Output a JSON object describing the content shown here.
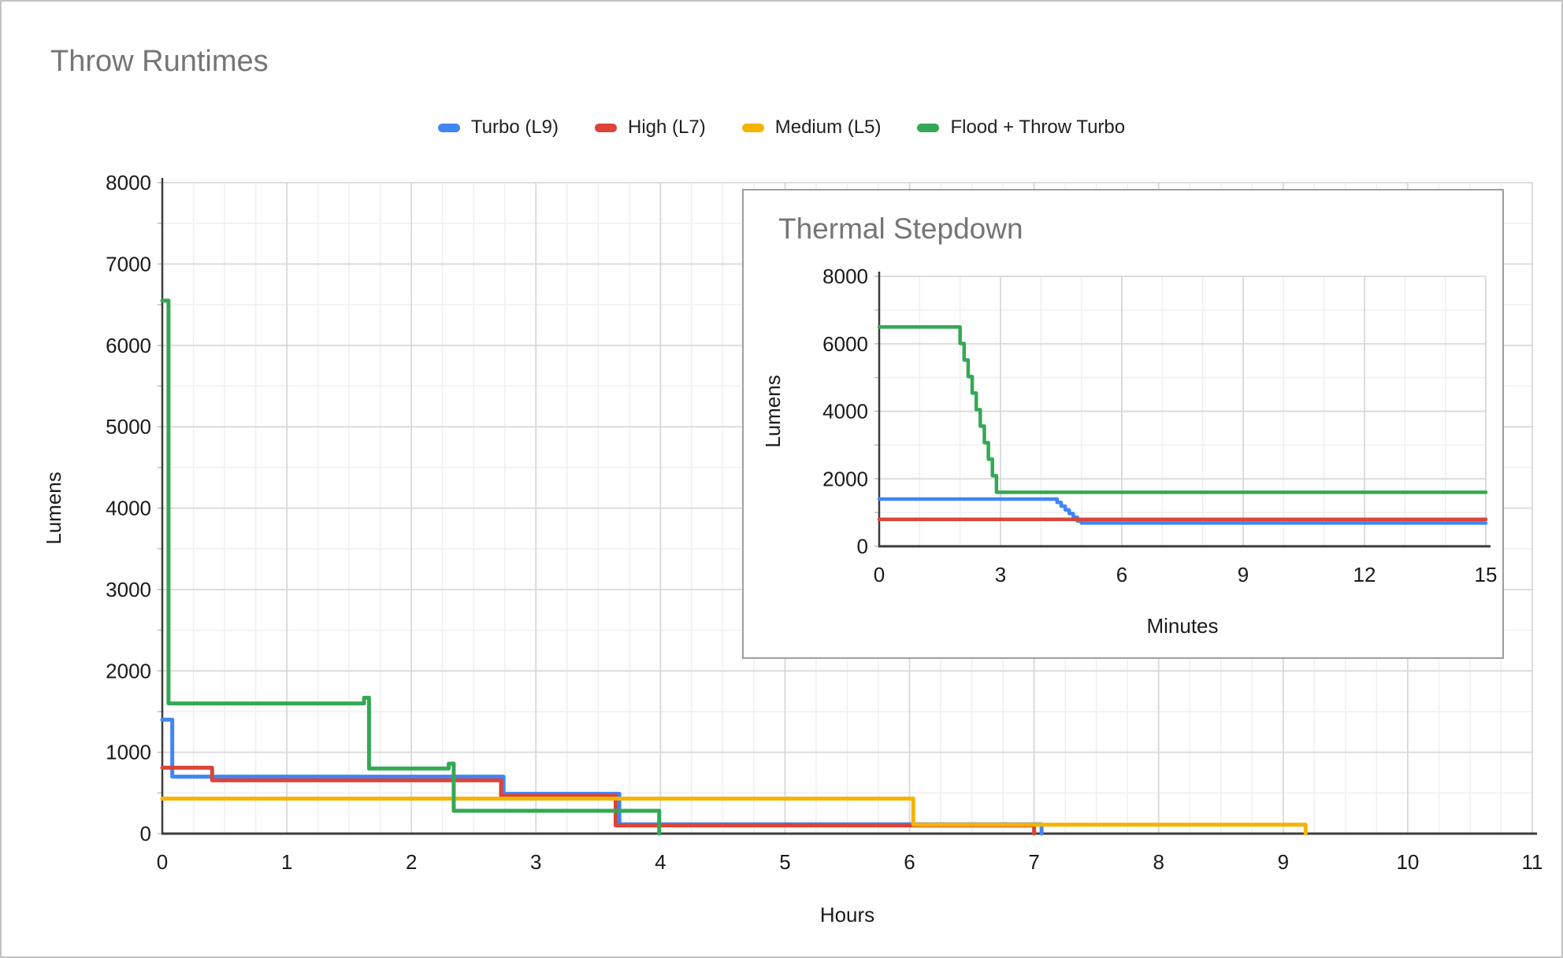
{
  "title": "Throw Runtimes",
  "legend": {
    "items": [
      {
        "label": "Turbo (L9)",
        "color": "#4285F4"
      },
      {
        "label": "High (L7)",
        "color": "#DB4437"
      },
      {
        "label": "Medium (L5)",
        "color": "#F5B400"
      },
      {
        "label": "Flood + Throw Turbo",
        "color": "#34A853"
      }
    ]
  },
  "chart_data": [
    {
      "type": "line",
      "interpolation": "step-after",
      "title": "Throw Runtimes",
      "xlabel": "Hours",
      "ylabel": "Lumens",
      "xlim": [
        0,
        11
      ],
      "ylim": [
        0,
        8000
      ],
      "x_ticks": [
        0,
        1,
        2,
        3,
        4,
        5,
        6,
        7,
        8,
        9,
        10,
        11
      ],
      "y_ticks": [
        0,
        1000,
        2000,
        3000,
        4000,
        5000,
        6000,
        7000,
        8000
      ],
      "minor_x_step": 0.25,
      "minor_y_step": 500,
      "grid": true,
      "legend_position": "top",
      "series": [
        {
          "name": "Turbo (L9)",
          "color": "#4285F4",
          "points": [
            [
              0,
              1400
            ],
            [
              0.08,
              700
            ],
            [
              2.74,
              490
            ],
            [
              3.67,
              115
            ],
            [
              7.06,
              0
            ]
          ]
        },
        {
          "name": "High (L7)",
          "color": "#DB4437",
          "points": [
            [
              0,
              810
            ],
            [
              0.4,
              655
            ],
            [
              2.72,
              465
            ],
            [
              3.64,
              100
            ],
            [
              7.0,
              0
            ]
          ]
        },
        {
          "name": "Medium (L5)",
          "color": "#F5B400",
          "points": [
            [
              0,
              430
            ],
            [
              6.03,
              110
            ],
            [
              9.18,
              0
            ]
          ]
        },
        {
          "name": "Flood + Throw Turbo",
          "color": "#34A853",
          "points": [
            [
              0,
              6550
            ],
            [
              0.05,
              1600
            ],
            [
              1.62,
              1670
            ],
            [
              1.66,
              800
            ],
            [
              2.3,
              860
            ],
            [
              2.34,
              280
            ],
            [
              3.99,
              0
            ]
          ]
        }
      ]
    },
    {
      "type": "line",
      "interpolation": "step-after",
      "title": "Thermal Stepdown",
      "xlabel": "Minutes",
      "ylabel": "Lumens",
      "xlim": [
        0,
        15
      ],
      "ylim": [
        0,
        8000
      ],
      "x_ticks": [
        0,
        3,
        6,
        9,
        12,
        15
      ],
      "y_ticks": [
        0,
        2000,
        4000,
        6000,
        8000
      ],
      "minor_x_step": 1,
      "minor_y_step": 1000,
      "grid": true,
      "series": [
        {
          "name": "Turbo (L9)",
          "color": "#4285F4",
          "points": [
            [
              0,
              1400
            ],
            [
              4.4,
              1300
            ],
            [
              4.5,
              1190
            ],
            [
              4.6,
              1080
            ],
            [
              4.7,
              970
            ],
            [
              4.8,
              860
            ],
            [
              4.9,
              750
            ],
            [
              5.0,
              690
            ],
            [
              15,
              690
            ]
          ]
        },
        {
          "name": "High (L7)",
          "color": "#DB4437",
          "points": [
            [
              0,
              800
            ],
            [
              15,
              800
            ]
          ]
        },
        {
          "name": "Flood + Throw Turbo",
          "color": "#34A853",
          "points": [
            [
              0,
              6500
            ],
            [
              2.0,
              6010
            ],
            [
              2.1,
              5520
            ],
            [
              2.2,
              5030
            ],
            [
              2.3,
              4540
            ],
            [
              2.4,
              4050
            ],
            [
              2.5,
              3560
            ],
            [
              2.6,
              3070
            ],
            [
              2.7,
              2580
            ],
            [
              2.8,
              2090
            ],
            [
              2.9,
              1600
            ],
            [
              15,
              1600
            ]
          ]
        }
      ]
    }
  ]
}
